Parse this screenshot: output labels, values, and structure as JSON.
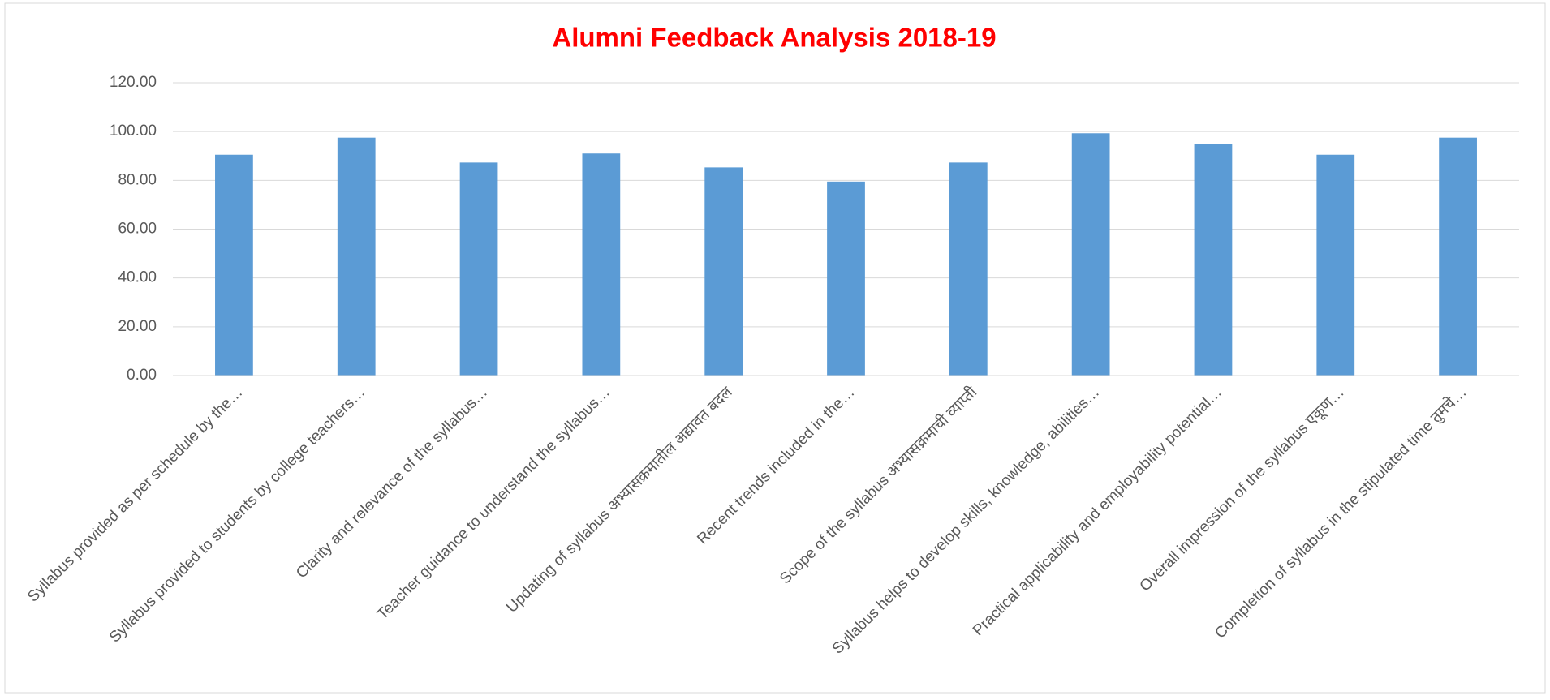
{
  "chart_data": {
    "type": "bar",
    "title": "Alumni Feedback Analysis 2018-19",
    "categories": [
      "Syllabus provided as per schedule by the…",
      "Syllabus provided to students by college teachers…",
      "Clarity and relevance of the syllabus…",
      "Teacher guidance to understand the syllabus…",
      "Updating of syllabus अभ्यासक्रमातील अद्यावत बदल",
      "Recent trends included in the…",
      "Scope of the syllabus अभ्यासक्रमाची व्याप्ती",
      "Syllabus helps to develop skills, knowledge, abilities…",
      "Practical applicability and employability potential…",
      "Overall impression of the syllabus एकूण…",
      "Completion of syllabus in the stipulated  time तुमचे…"
    ],
    "values": [
      90.5,
      97.5,
      87.3,
      91,
      85.3,
      79.5,
      87.3,
      99.3,
      95,
      90.5,
      97.5
    ],
    "color": "#5b9bd5",
    "ylim": [
      0,
      120
    ],
    "yticks": [
      {
        "value": 0,
        "label": "0.00"
      },
      {
        "value": 20,
        "label": "20.00"
      },
      {
        "value": 40,
        "label": "40.00"
      },
      {
        "value": 60,
        "label": "60.00"
      },
      {
        "value": 80,
        "label": "80.00"
      },
      {
        "value": 100,
        "label": "100.00"
      },
      {
        "value": 120,
        "label": "120.00"
      }
    ],
    "grid": true
  }
}
